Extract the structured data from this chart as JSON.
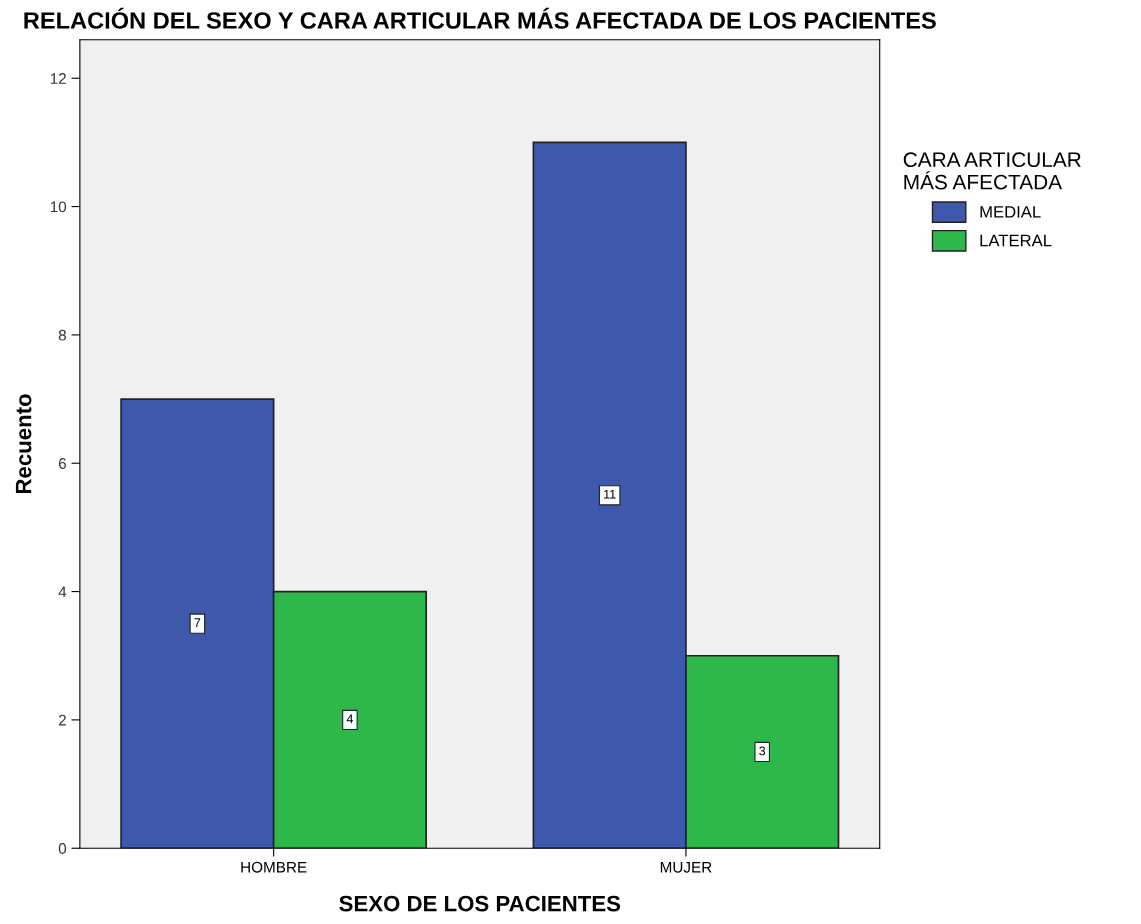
{
  "chart_data": {
    "type": "bar",
    "title": "RELACIÓN DEL SEXO Y CARA ARTICULAR MÁS AFECTADA DE LOS PACIENTES",
    "xlabel": "SEXO DE LOS PACIENTES",
    "ylabel": "Recuento",
    "legend_title": "CARA ARTICULAR\nMÁS AFECTADA",
    "categories": [
      "HOMBRE",
      "MUJER"
    ],
    "series": [
      {
        "name": "MEDIAL",
        "color": "#3e58ac",
        "values": [
          7,
          11
        ]
      },
      {
        "name": "LATERAL",
        "color": "#2eb84b",
        "values": [
          4,
          3
        ]
      }
    ],
    "ylim": [
      0,
      12.6
    ],
    "yticks": [
      0,
      2,
      4,
      6,
      8,
      10,
      12
    ],
    "grid": false,
    "legend": "right",
    "data_labels": true
  }
}
